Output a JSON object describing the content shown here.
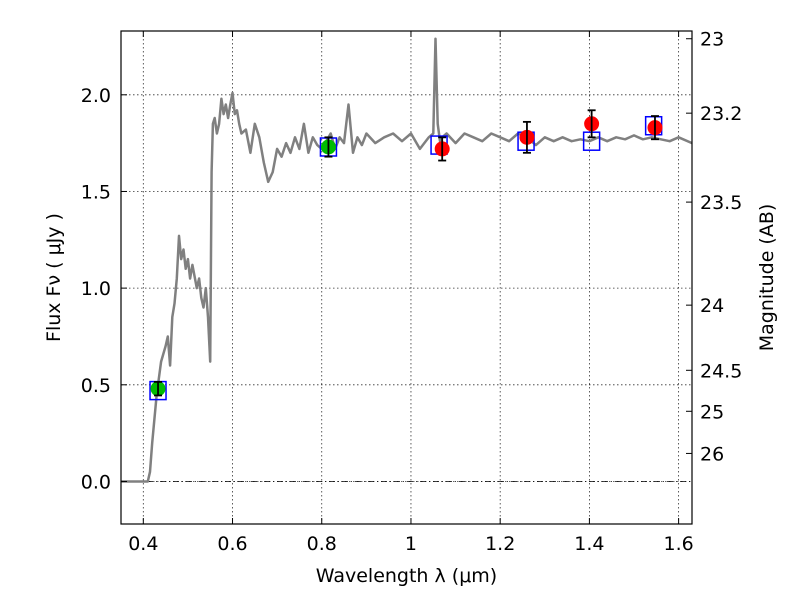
{
  "chart_data": {
    "type": "line",
    "xlabel": "Wavelength  λ (μm)",
    "ylabel": "Flux  Fν  ( μJy )",
    "y2label": "Magnitude (AB)",
    "xlim": [
      0.35,
      1.63
    ],
    "ylim": [
      -0.22,
      2.33
    ],
    "x_ticks": [
      0.4,
      0.6,
      0.8,
      1.0,
      1.2,
      1.4,
      1.6
    ],
    "x_tick_labels": [
      "0.4",
      "0.6",
      "0.8",
      "1",
      "1.2",
      "1.4",
      "1.6"
    ],
    "y_ticks": [
      0.0,
      0.5,
      1.0,
      1.5,
      2.0
    ],
    "y_tick_labels": [
      "0.0",
      "0.5",
      "1.0",
      "1.5",
      "2.0"
    ],
    "mag_ticks": [
      {
        "label": "23",
        "flux": 2.29
      },
      {
        "label": "23.2",
        "flux": 1.905
      },
      {
        "label": "23.5",
        "flux": 1.445
      },
      {
        "label": "24",
        "flux": 0.912
      },
      {
        "label": "24.5",
        "flux": 0.575
      },
      {
        "label": "25",
        "flux": 0.363
      },
      {
        "label": "26",
        "flux": 0.145
      }
    ],
    "grid": true,
    "spectrum": {
      "color": "#808080",
      "x": [
        0.35,
        0.38,
        0.41,
        0.415,
        0.42,
        0.43,
        0.44,
        0.45,
        0.455,
        0.46,
        0.465,
        0.47,
        0.475,
        0.48,
        0.485,
        0.49,
        0.495,
        0.5,
        0.505,
        0.51,
        0.52,
        0.525,
        0.53,
        0.535,
        0.54,
        0.545,
        0.55,
        0.553,
        0.556,
        0.56,
        0.565,
        0.57,
        0.575,
        0.58,
        0.585,
        0.59,
        0.595,
        0.6,
        0.605,
        0.61,
        0.615,
        0.62,
        0.63,
        0.64,
        0.65,
        0.66,
        0.67,
        0.68,
        0.69,
        0.7,
        0.71,
        0.72,
        0.73,
        0.74,
        0.75,
        0.76,
        0.77,
        0.78,
        0.79,
        0.8,
        0.81,
        0.82,
        0.83,
        0.84,
        0.85,
        0.86,
        0.87,
        0.88,
        0.89,
        0.9,
        0.92,
        0.94,
        0.96,
        0.98,
        1.0,
        1.02,
        1.04,
        1.05,
        1.055,
        1.06,
        1.065,
        1.07,
        1.08,
        1.1,
        1.12,
        1.14,
        1.16,
        1.18,
        1.2,
        1.22,
        1.24,
        1.26,
        1.28,
        1.3,
        1.32,
        1.34,
        1.36,
        1.38,
        1.4,
        1.42,
        1.44,
        1.46,
        1.48,
        1.5,
        1.52,
        1.54,
        1.56,
        1.58,
        1.6,
        1.63
      ],
      "y": [
        0.0,
        0.0,
        0.0,
        0.05,
        0.2,
        0.45,
        0.62,
        0.7,
        0.75,
        0.6,
        0.85,
        0.92,
        1.05,
        1.27,
        1.15,
        1.2,
        1.1,
        1.15,
        1.05,
        1.12,
        1.0,
        1.05,
        0.95,
        0.9,
        1.0,
        0.85,
        0.62,
        1.6,
        1.85,
        1.88,
        1.8,
        1.85,
        1.98,
        1.9,
        1.95,
        1.88,
        1.95,
        2.01,
        1.9,
        1.92,
        1.85,
        1.8,
        1.82,
        1.7,
        1.85,
        1.78,
        1.65,
        1.55,
        1.6,
        1.72,
        1.68,
        1.75,
        1.7,
        1.78,
        1.72,
        1.85,
        1.7,
        1.78,
        1.74,
        1.72,
        1.76,
        1.8,
        1.72,
        1.78,
        1.75,
        1.95,
        1.7,
        1.78,
        1.74,
        1.8,
        1.75,
        1.78,
        1.8,
        1.76,
        1.8,
        1.72,
        1.78,
        1.8,
        2.29,
        1.85,
        1.76,
        1.78,
        1.8,
        1.75,
        1.8,
        1.78,
        1.76,
        1.8,
        1.78,
        1.76,
        1.8,
        1.78,
        1.74,
        1.78,
        1.76,
        1.78,
        1.76,
        1.77,
        1.76,
        1.78,
        1.76,
        1.78,
        1.77,
        1.79,
        1.77,
        1.78,
        1.77,
        1.76,
        1.78,
        1.75
      ]
    },
    "model_points": {
      "marker": "square",
      "color": "#0000ff",
      "x": [
        0.433,
        0.815,
        1.063,
        1.258,
        1.405,
        1.544
      ],
      "y": [
        0.47,
        1.73,
        1.74,
        1.76,
        1.76,
        1.84
      ]
    },
    "observed_points": [
      {
        "x": 0.433,
        "y": 0.48,
        "err": 0.035,
        "color": "#00bb00"
      },
      {
        "x": 0.815,
        "y": 1.73,
        "err": 0.05,
        "color": "#00bb00"
      },
      {
        "x": 1.07,
        "y": 1.72,
        "err": 0.06,
        "color": "#ff0000"
      },
      {
        "x": 1.26,
        "y": 1.78,
        "err": 0.08,
        "color": "#ff0000"
      },
      {
        "x": 1.405,
        "y": 1.85,
        "err": 0.07,
        "color": "#ff0000"
      },
      {
        "x": 1.547,
        "y": 1.83,
        "err": 0.06,
        "color": "#ff0000"
      }
    ],
    "zero_line": {
      "y": 0.0,
      "style": "dash-dot"
    }
  }
}
